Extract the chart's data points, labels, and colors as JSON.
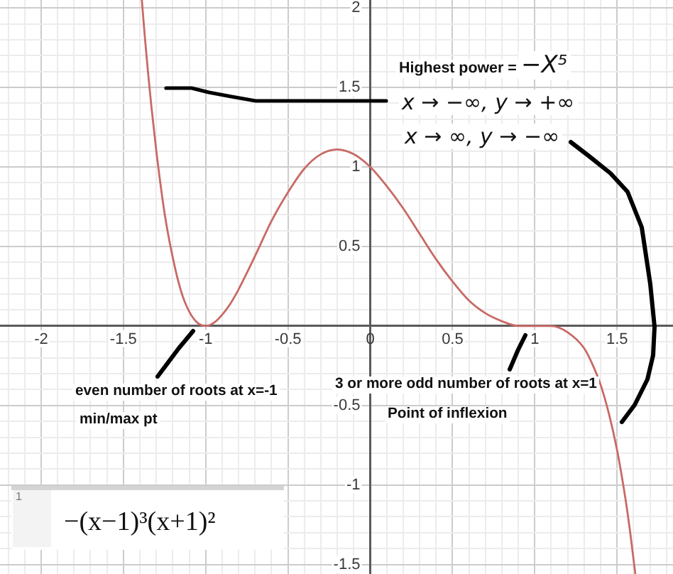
{
  "chart_data": {
    "type": "line",
    "x": [
      -1.388,
      -1.37,
      -1.35,
      -1.33,
      -1.3,
      -1.25,
      -1.2,
      -1.15,
      -1.1,
      -1.05,
      -1,
      -0.95,
      -0.9,
      -0.85,
      -0.8,
      -0.7,
      -0.6,
      -0.5,
      -0.4,
      -0.3,
      -0.2,
      -0.1,
      0,
      0.1,
      0.2,
      0.3,
      0.4,
      0.5,
      0.6,
      0.7,
      0.8,
      0.9,
      1,
      1.1,
      1.2,
      1.3,
      1.35,
      1.4,
      1.45,
      1.5,
      1.55,
      1.58,
      1.611
    ],
    "values": [
      2.05,
      1.82,
      1.59,
      1.38,
      1.1,
      0.71,
      0.43,
      0.22,
      0.09,
      0.02,
      0,
      0.02,
      0.07,
      0.14,
      0.23,
      0.44,
      0.66,
      0.84,
      0.99,
      1.08,
      1.11,
      1.08,
      1,
      0.88,
      0.74,
      0.58,
      0.42,
      0.28,
      0.16,
      0.08,
      0.03,
      0,
      0,
      0,
      -0.04,
      -0.14,
      -0.24,
      -0.37,
      -0.55,
      -0.78,
      -1.08,
      -1.3,
      -1.56
    ],
    "color": "#c86a66",
    "xlim": [
      -2.25,
      1.84
    ],
    "ylim": [
      -1.56,
      2.05
    ],
    "xticks": [
      {
        "value": -2.2,
        "label": null
      },
      {
        "value": -2.1,
        "label": null
      },
      -2,
      {
        "value": -1.9,
        "label": null
      },
      {
        "value": -1.8,
        "label": null
      },
      {
        "value": -1.7,
        "label": null
      },
      {
        "value": -1.6,
        "label": null
      },
      -1.5,
      {
        "value": -1.4,
        "label": null
      },
      {
        "value": -1.3,
        "label": null
      },
      {
        "value": -1.2,
        "label": null
      },
      {
        "value": -1.1,
        "label": null
      },
      -1,
      {
        "value": -0.9,
        "label": null
      },
      {
        "value": -0.8,
        "label": null
      },
      {
        "value": -0.7,
        "label": null
      },
      {
        "value": -0.6,
        "label": null
      },
      -0.5,
      {
        "value": -0.4,
        "label": null
      },
      {
        "value": -0.3,
        "label": null
      },
      {
        "value": -0.2,
        "label": null
      },
      {
        "value": -0.1,
        "label": null
      },
      0,
      {
        "value": 0.1,
        "label": null
      },
      {
        "value": 0.2,
        "label": null
      },
      {
        "value": 0.3,
        "label": null
      },
      {
        "value": 0.4,
        "label": null
      },
      0.5,
      {
        "value": 0.6,
        "label": null
      },
      {
        "value": 0.7,
        "label": null
      },
      {
        "value": 0.8,
        "label": null
      },
      {
        "value": 0.9,
        "label": null
      },
      1,
      {
        "value": 1.1,
        "label": null
      },
      {
        "value": 1.2,
        "label": null
      },
      {
        "value": 1.3,
        "label": null
      },
      {
        "value": 1.4,
        "label": null
      },
      1.5,
      {
        "value": 1.6,
        "label": null
      },
      {
        "value": 1.7,
        "label": null
      },
      {
        "value": 1.8,
        "label": null
      }
    ],
    "yticks": [
      -1.5,
      {
        "value": -1.4,
        "label": null
      },
      {
        "value": -1.3,
        "label": null
      },
      {
        "value": -1.2,
        "label": null
      },
      {
        "value": -1.1,
        "label": null
      },
      -1,
      {
        "value": -0.9,
        "label": null
      },
      {
        "value": -0.8,
        "label": null
      },
      {
        "value": -0.7,
        "label": null
      },
      {
        "value": -0.6,
        "label": null
      },
      -0.5,
      {
        "value": -0.4,
        "label": null
      },
      {
        "value": -0.3,
        "label": null
      },
      {
        "value": -0.2,
        "label": null
      },
      {
        "value": -0.1,
        "label": null
      },
      {
        "value": 0,
        "label": null
      },
      {
        "value": 0.1,
        "label": null
      },
      {
        "value": 0.2,
        "label": null
      },
      {
        "value": 0.3,
        "label": null
      },
      {
        "value": 0.4,
        "label": null
      },
      0.5,
      {
        "value": 0.6,
        "label": null
      },
      {
        "value": 0.7,
        "label": null
      },
      {
        "value": 0.8,
        "label": null
      },
      {
        "value": 0.9,
        "label": null
      },
      1,
      {
        "value": 1.1,
        "label": null
      },
      {
        "value": 1.2,
        "label": null
      },
      {
        "value": 1.3,
        "label": null
      },
      {
        "value": 1.4,
        "label": null
      },
      1.5,
      {
        "value": 1.6,
        "label": null
      },
      {
        "value": 1.7,
        "label": null
      },
      {
        "value": 1.8,
        "label": null
      },
      {
        "value": 1.9,
        "label": null
      },
      2
    ],
    "grid": true,
    "marker": "none",
    "line_style": "solid",
    "annotations": [
      "Highest power =",
      "−X⁵",
      "x → −∞, y → +∞",
      "x → ∞, y → −∞",
      "even number of roots at x=-1",
      "min/max pt",
      "3 or more odd number of roots at x=1",
      "Point of inflexion",
      "1",
      "−(x−1)³(x+1)²"
    ]
  }
}
